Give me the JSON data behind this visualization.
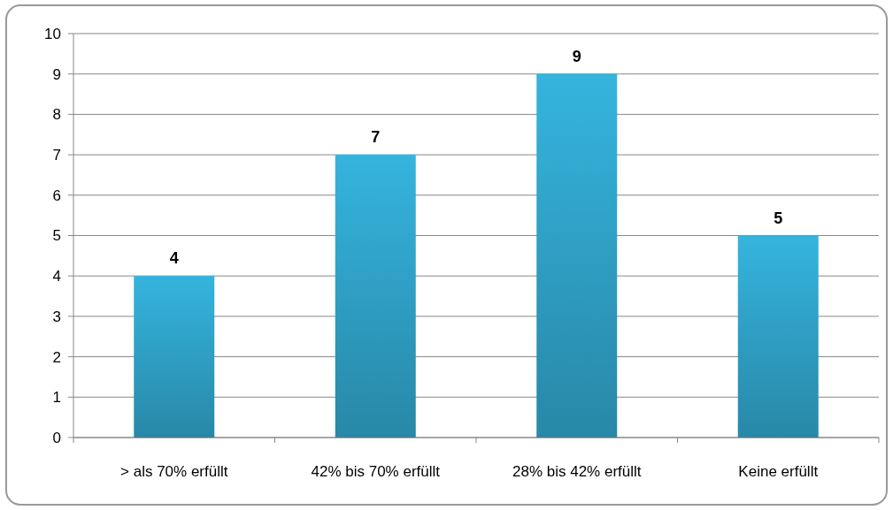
{
  "chart_data": {
    "type": "bar",
    "categories": [
      "> als 70% erfüllt",
      "42% bis 70% erfüllt",
      "28% bis 42% erfüllt",
      "Keine erfüllt"
    ],
    "values": [
      4,
      7,
      9,
      5
    ],
    "color": "#31a8cf",
    "ylim": [
      0,
      10
    ],
    "yticks": [
      0,
      1,
      2,
      3,
      4,
      5,
      6,
      7,
      8,
      9,
      10
    ],
    "grid": "y",
    "data_labels": true
  }
}
